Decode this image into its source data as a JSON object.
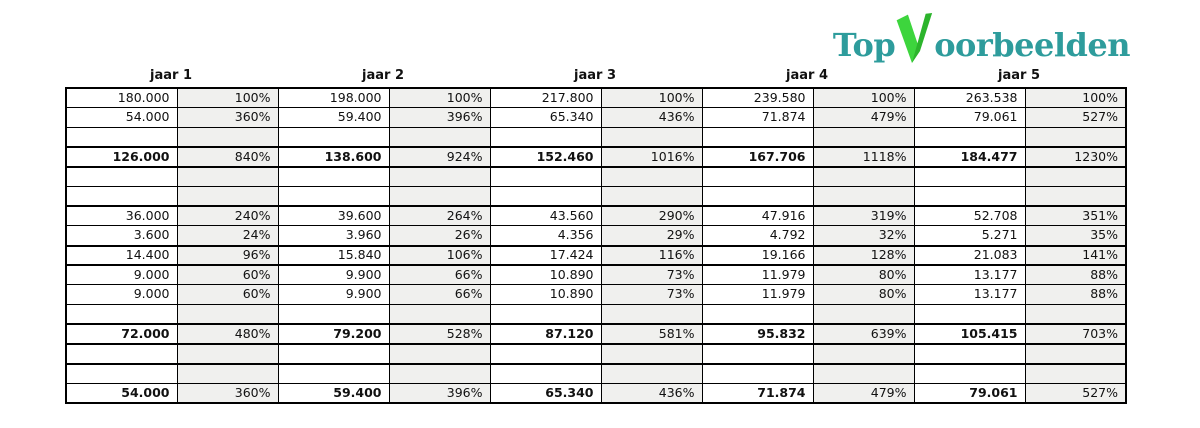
{
  "logo": {
    "prefix": "Top",
    "suffix": "oorbeelden",
    "teal": "#2E9C9C",
    "green_bright": "#3DD53D",
    "green_dark": "#2CB42C"
  },
  "table": {
    "year_headers": [
      "jaar 1",
      "jaar 2",
      "jaar 3",
      "jaar 4",
      "jaar 5"
    ],
    "percent_bg": "#f0f0ee",
    "border_color": "#000000",
    "rows": [
      {
        "bold": false,
        "bb": "thin",
        "cells": [
          "180.000",
          "100%",
          "198.000",
          "100%",
          "217.800",
          "100%",
          "239.580",
          "100%",
          "263.538",
          "100%"
        ]
      },
      {
        "bold": false,
        "bb": "thin",
        "cells": [
          "54.000",
          "360%",
          "59.400",
          "396%",
          "65.340",
          "436%",
          "71.874",
          "479%",
          "79.061",
          "527%"
        ]
      },
      {
        "bold": false,
        "bb": "thick",
        "cells": [
          "",
          "",
          "",
          "",
          "",
          "",
          "",
          "",
          "",
          ""
        ]
      },
      {
        "bold": true,
        "bb": "thick",
        "cells": [
          "126.000",
          "840%",
          "138.600",
          "924%",
          "152.460",
          "1016%",
          "167.706",
          "1118%",
          "184.477",
          "1230%"
        ]
      },
      {
        "bold": false,
        "bb": "thin",
        "cells": [
          "",
          "",
          "",
          "",
          "",
          "",
          "",
          "",
          "",
          ""
        ]
      },
      {
        "bold": false,
        "bb": "thick",
        "cells": [
          "",
          "",
          "",
          "",
          "",
          "",
          "",
          "",
          "",
          ""
        ]
      },
      {
        "bold": false,
        "bb": "thin",
        "cells": [
          "36.000",
          "240%",
          "39.600",
          "264%",
          "43.560",
          "290%",
          "47.916",
          "319%",
          "52.708",
          "351%"
        ]
      },
      {
        "bold": false,
        "bb": "thick",
        "cells": [
          "3.600",
          "24%",
          "3.960",
          "26%",
          "4.356",
          "29%",
          "4.792",
          "32%",
          "5.271",
          "35%"
        ]
      },
      {
        "bold": false,
        "bb": "thick",
        "cells": [
          "14.400",
          "96%",
          "15.840",
          "106%",
          "17.424",
          "116%",
          "19.166",
          "128%",
          "21.083",
          "141%"
        ]
      },
      {
        "bold": false,
        "bb": "thin",
        "cells": [
          "9.000",
          "60%",
          "9.900",
          "66%",
          "10.890",
          "73%",
          "11.979",
          "80%",
          "13.177",
          "88%"
        ]
      },
      {
        "bold": false,
        "bb": "thin",
        "cells": [
          "9.000",
          "60%",
          "9.900",
          "66%",
          "10.890",
          "73%",
          "11.979",
          "80%",
          "13.177",
          "88%"
        ]
      },
      {
        "bold": false,
        "bb": "thick",
        "cells": [
          "",
          "",
          "",
          "",
          "",
          "",
          "",
          "",
          "",
          ""
        ]
      },
      {
        "bold": true,
        "bb": "thick",
        "cells": [
          "72.000",
          "480%",
          "79.200",
          "528%",
          "87.120",
          "581%",
          "95.832",
          "639%",
          "105.415",
          "703%"
        ]
      },
      {
        "bold": false,
        "bb": "thick",
        "cells": [
          "",
          "",
          "",
          "",
          "",
          "",
          "",
          "",
          "",
          ""
        ]
      },
      {
        "bold": false,
        "bb": "thin",
        "cells": [
          "",
          "",
          "",
          "",
          "",
          "",
          "",
          "",
          "",
          ""
        ]
      },
      {
        "bold": true,
        "bb": "thick",
        "cells": [
          "54.000",
          "360%",
          "59.400",
          "396%",
          "65.340",
          "436%",
          "71.874",
          "479%",
          "79.061",
          "527%"
        ]
      }
    ]
  }
}
